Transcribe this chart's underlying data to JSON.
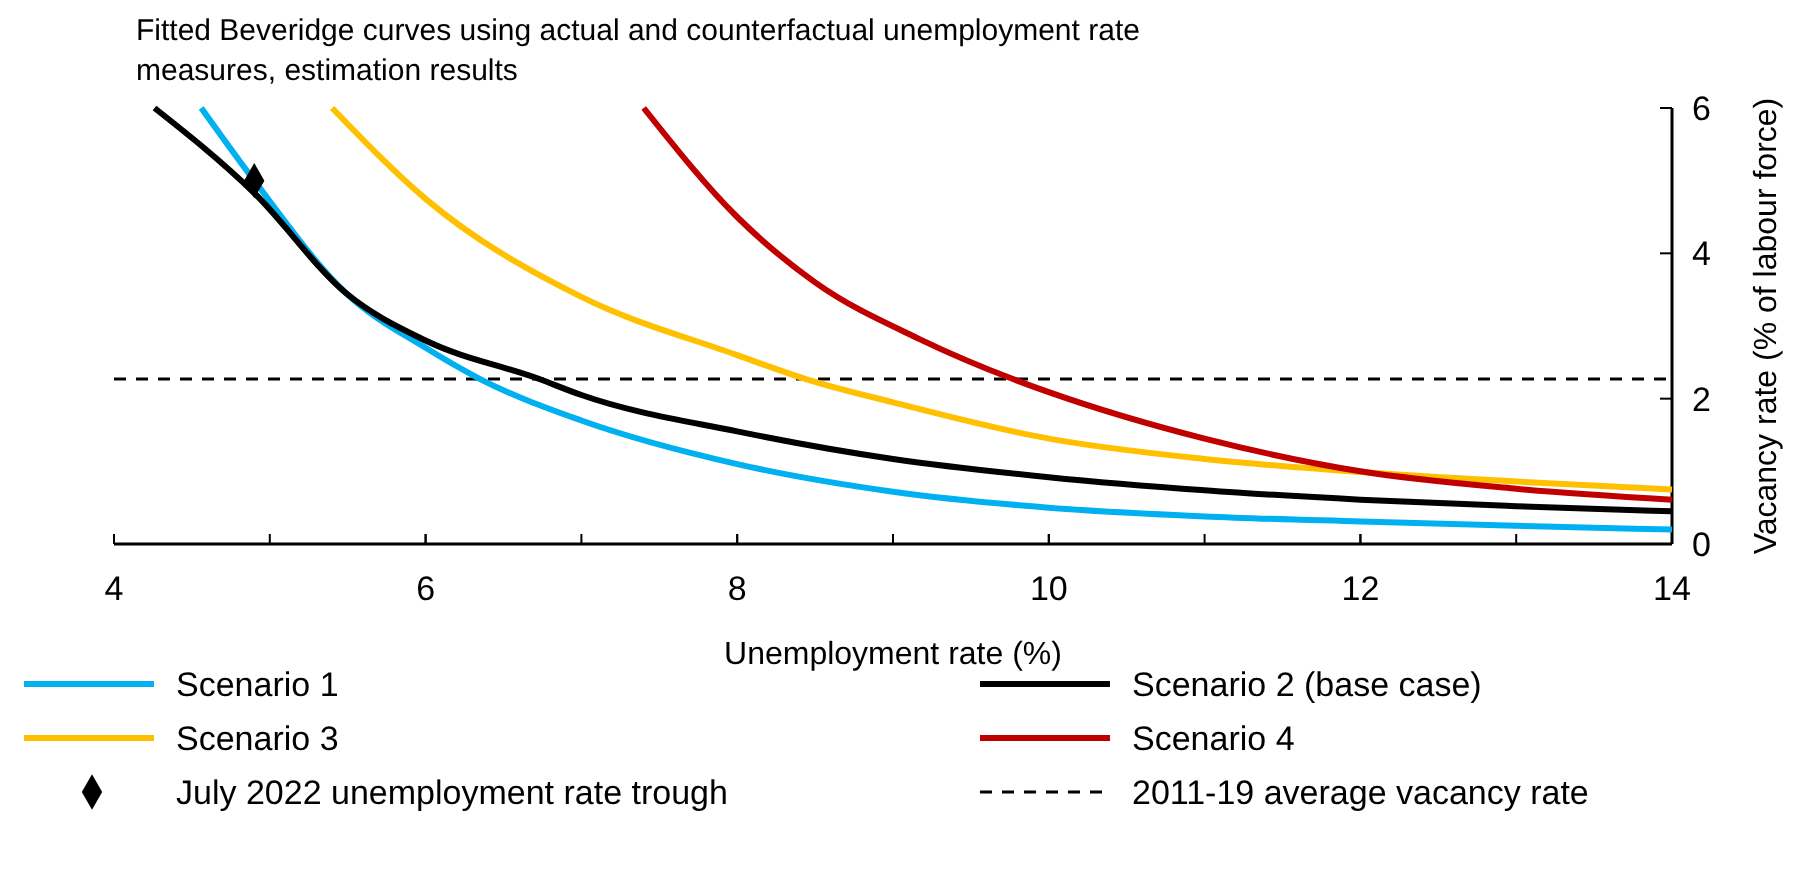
{
  "chart_data": {
    "type": "line",
    "title": "Fitted Beveridge curves using actual and counterfactual unemployment rate measures, estimation results",
    "xlabel": "Unemployment rate (%)",
    "ylabel": "Vacancy rate (% of labour force)",
    "xlim": [
      4,
      14
    ],
    "xticks": [
      4,
      6,
      8,
      10,
      12,
      14
    ],
    "ylim": [
      0,
      6
    ],
    "yticks": [
      0,
      2,
      4,
      6
    ],
    "legend": "bottom",
    "grid": false,
    "series": [
      {
        "name": "Scenario 1",
        "color": "#00b0f0",
        "x": [
          4.56,
          4.9,
          5.49,
          6,
          6.35,
          7,
          8,
          9,
          10,
          11,
          12,
          13,
          14
        ],
        "values": [
          6,
          5.0,
          3.45,
          2.7,
          2.27,
          1.7,
          1.1,
          0.72,
          0.5,
          0.38,
          0.31,
          0.25,
          0.2
        ]
      },
      {
        "name": "Scenario 2 (base case)",
        "color": "#000000",
        "x": [
          4.26,
          4.9,
          5.49,
          6,
          6.73,
          7,
          8,
          9,
          10,
          11,
          12,
          13,
          14
        ],
        "values": [
          6,
          4.83,
          3.45,
          2.8,
          2.27,
          2.05,
          1.55,
          1.17,
          0.92,
          0.74,
          0.61,
          0.52,
          0.45
        ]
      },
      {
        "name": "Scenario 3",
        "color": "#ffc000",
        "x": [
          5.4,
          6,
          7,
          8,
          8.44,
          9,
          10,
          11,
          12,
          13,
          14
        ],
        "values": [
          6,
          4.75,
          3.4,
          2.6,
          2.27,
          1.95,
          1.45,
          1.17,
          0.99,
          0.86,
          0.75
        ]
      },
      {
        "name": "Scenario 4",
        "color": "#c00000",
        "x": [
          7.4,
          8,
          8.5,
          9.17,
          9.77,
          10,
          11,
          12,
          13,
          14
        ],
        "values": [
          6,
          4.5,
          3.6,
          2.82,
          2.27,
          2.09,
          1.45,
          1.0,
          0.76,
          0.61
        ]
      },
      {
        "name": "July 2022 unemployment rate trough",
        "type": "scatter",
        "marker": "diamond",
        "color": "#000000",
        "x": [
          4.9
        ],
        "values": [
          5.0
        ]
      }
    ],
    "ref_lines": [
      {
        "axis": "y",
        "value": 2.27,
        "label": "2011-19 average vacancy rate",
        "color": "#000000",
        "line_style": "dashed"
      }
    ]
  }
}
